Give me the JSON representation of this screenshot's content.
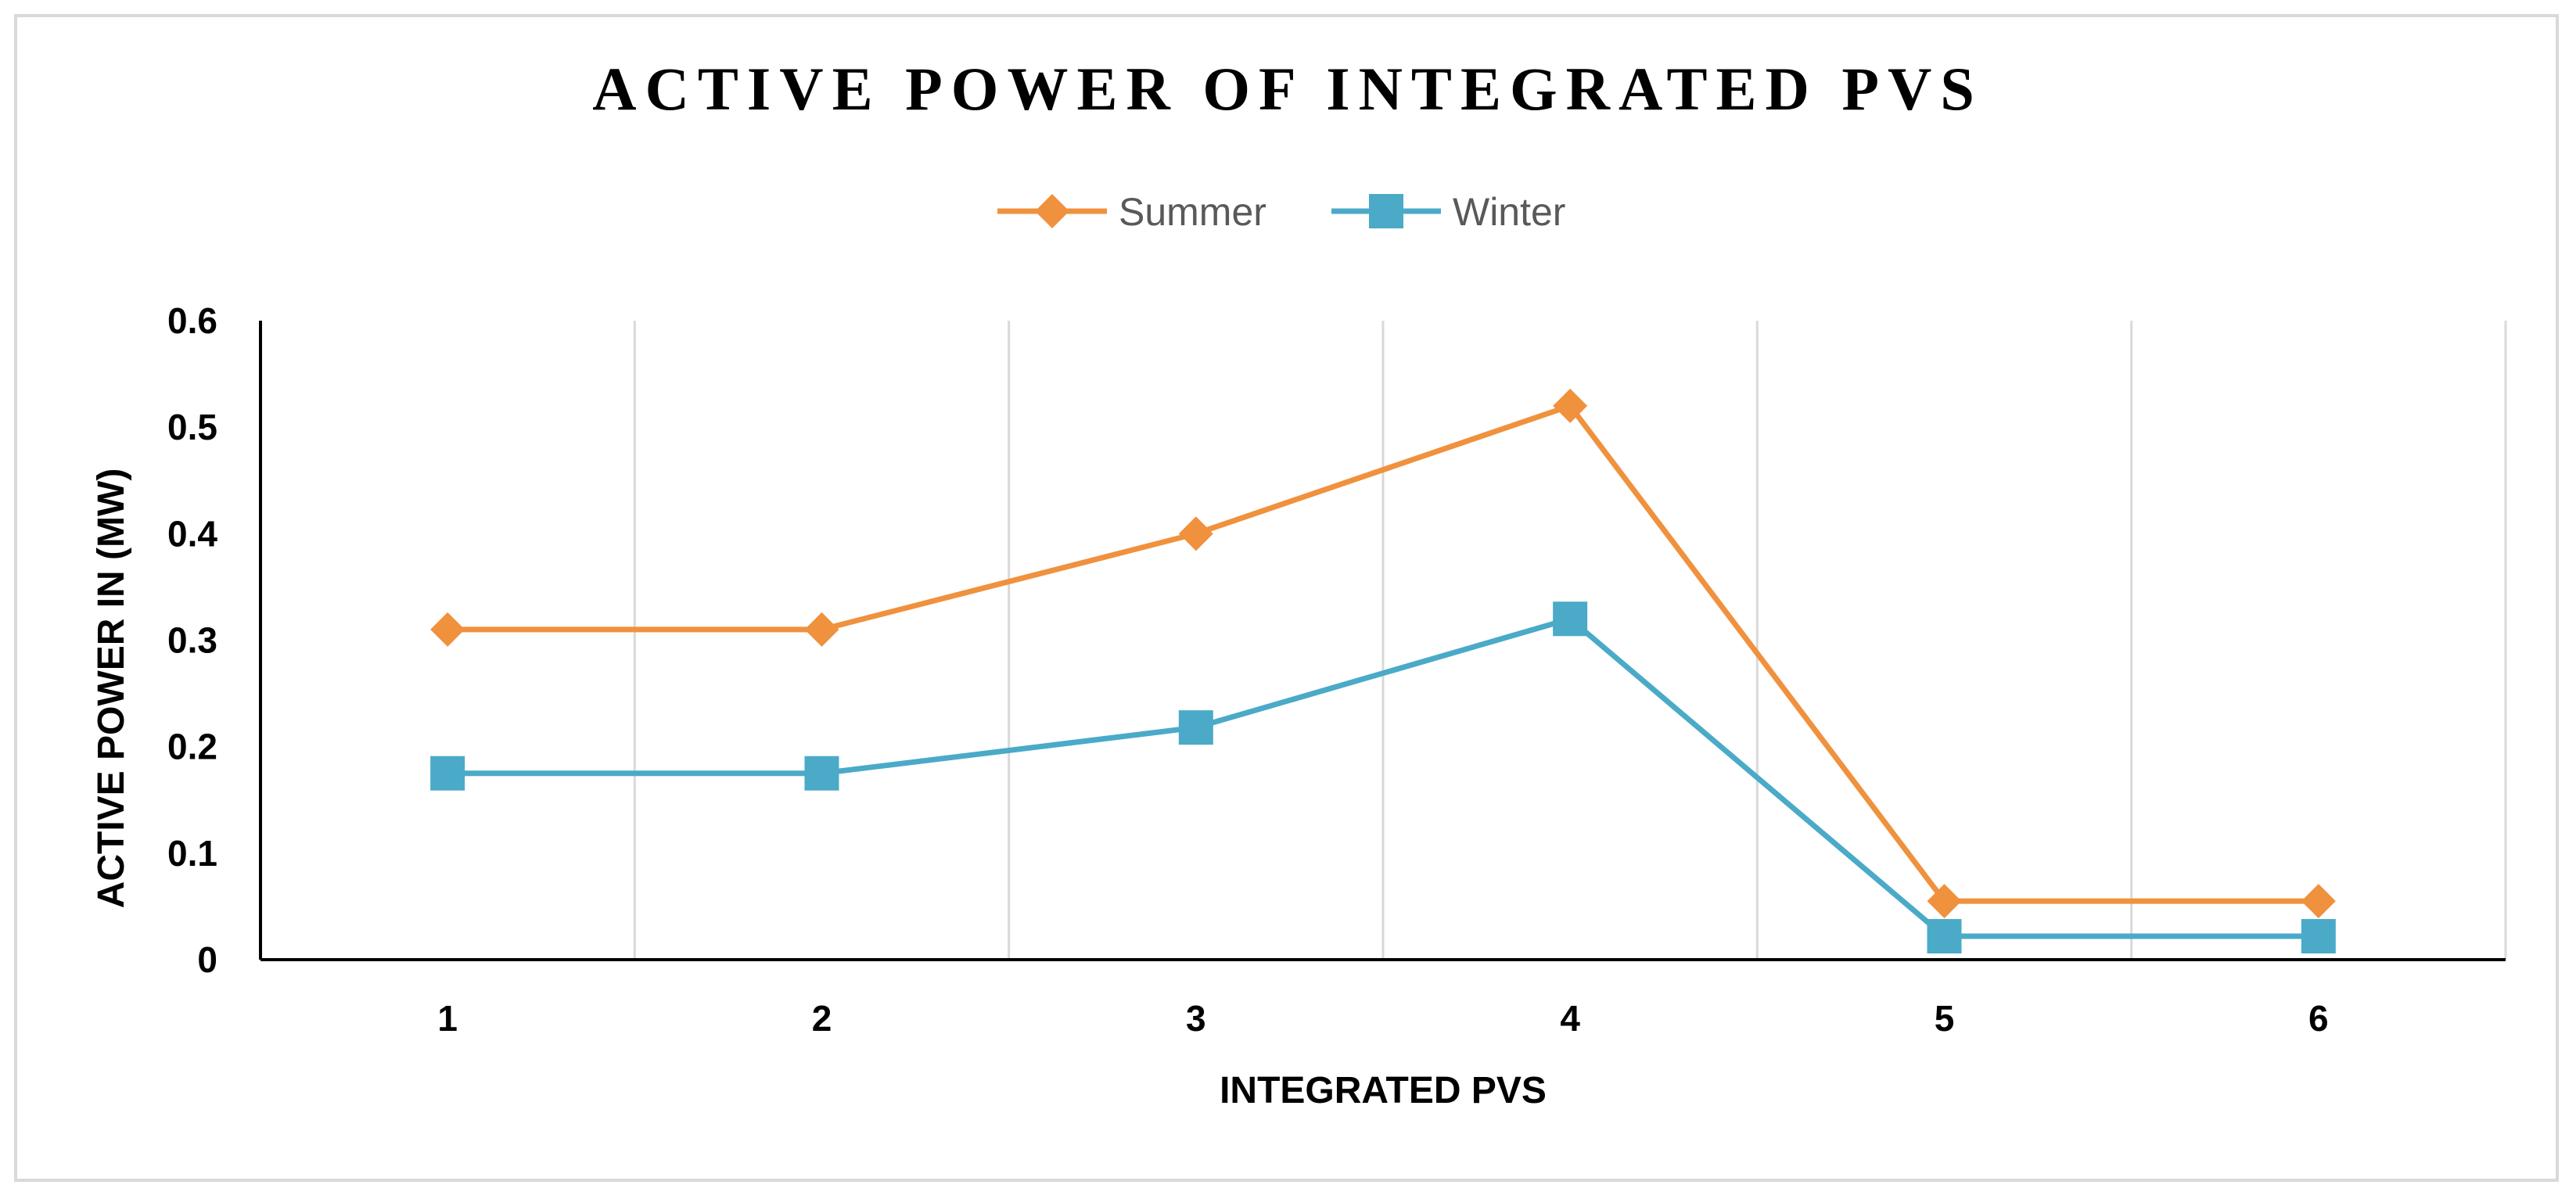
{
  "chart_data": {
    "type": "line",
    "title": "ACTIVE POWER OF INTEGRATED PVS",
    "xlabel": "INTEGRATED PVS",
    "ylabel": "ACTIVE POWER IN (MW)",
    "categories": [
      "1",
      "2",
      "3",
      "4",
      "5",
      "6"
    ],
    "yticks": [
      "0",
      "0.1",
      "0.2",
      "0.3",
      "0.4",
      "0.5",
      "0.6"
    ],
    "ylim": [
      0,
      0.6
    ],
    "grid": "vertical",
    "legend_position": "top-center",
    "series": [
      {
        "name": "Summer",
        "color": "#f0913e",
        "marker": "diamond",
        "values": [
          0.31,
          0.31,
          0.4,
          0.52,
          0.055,
          0.055
        ]
      },
      {
        "name": "Winter",
        "color": "#4aaac8",
        "marker": "square",
        "values": [
          0.175,
          0.175,
          0.218,
          0.32,
          0.022,
          0.022
        ]
      }
    ]
  }
}
